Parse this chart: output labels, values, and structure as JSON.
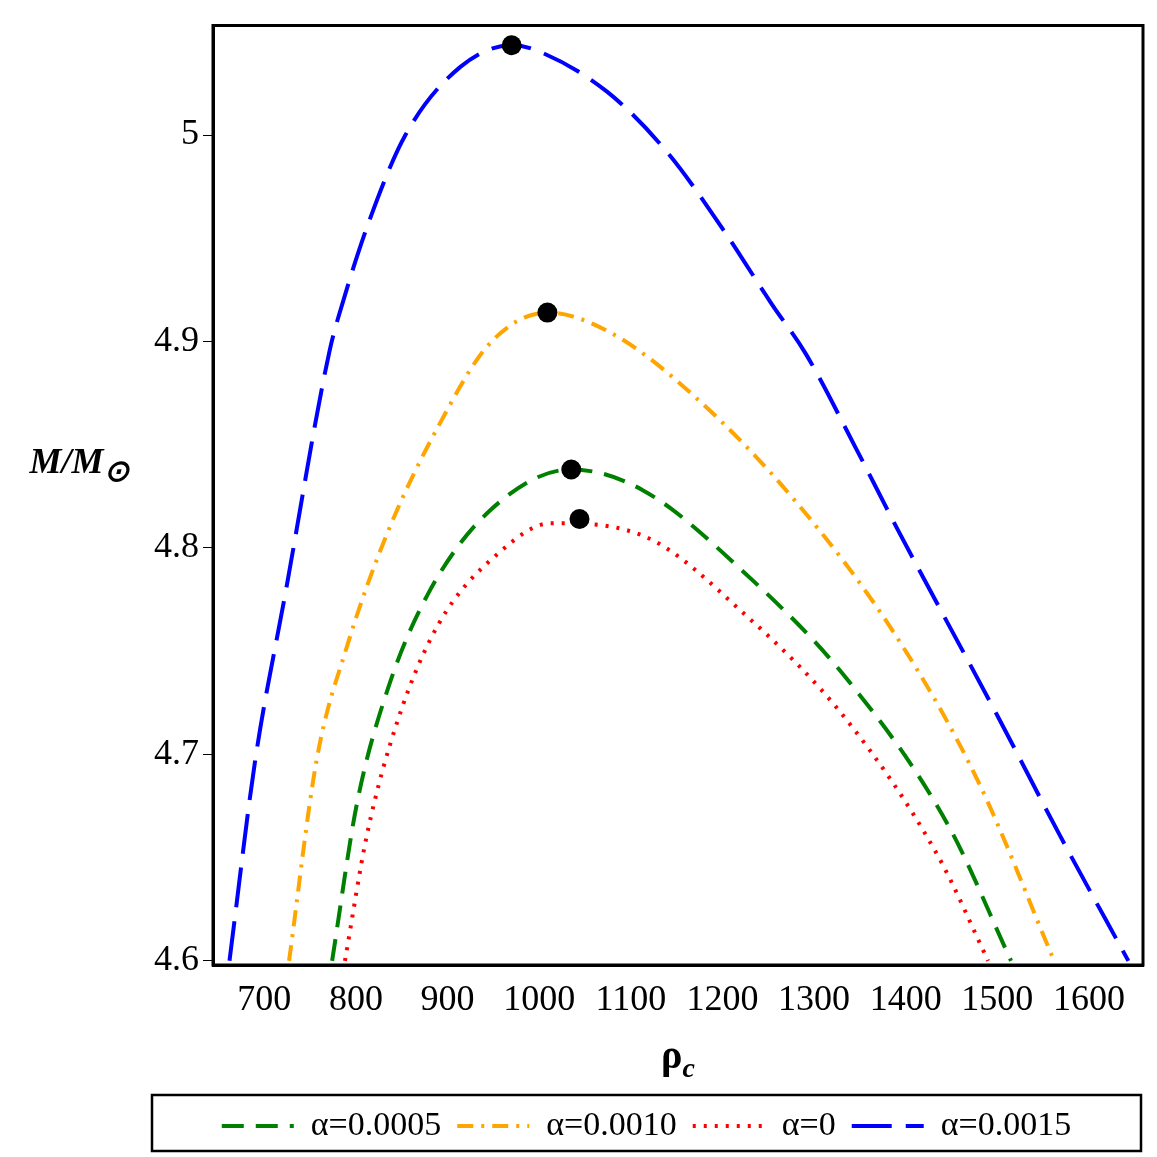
{
  "chart_data": {
    "type": "line",
    "xlabel": "ρ$_{c}$",
    "ylabel": "M/M$_{⊙}$",
    "xlim": [
      644,
      1659
    ],
    "ylim": [
      4.598,
      5.053
    ],
    "xticks": [
      700,
      800,
      900,
      1000,
      1100,
      1200,
      1300,
      1400,
      1500,
      1600
    ],
    "yticks": [
      {
        "value": 4.6,
        "label": "4.6"
      },
      {
        "value": 4.7,
        "label": "4.7"
      },
      {
        "value": 4.8,
        "label": "4.8"
      },
      {
        "value": 4.9,
        "label": "4.9"
      },
      {
        "value": 5.0,
        "label": "5"
      }
    ],
    "grid": false,
    "legend": "bottom",
    "marker": "none",
    "series": [
      {
        "name": "α=0.0005",
        "color": "#008000",
        "line_style": "dashed",
        "x": [
          774,
          801,
          835,
          879,
          946,
          1035,
          1113,
          1224,
          1335,
          1446,
          1515
        ],
        "values": [
          4.6,
          4.676,
          4.732,
          4.778,
          4.818,
          4.838,
          4.828,
          4.788,
          4.737,
          4.666,
          4.6
        ]
      },
      {
        "name": "α=0.0010",
        "color": "#ffa500",
        "line_style": "dashdot",
        "x": [
          727,
          757,
          790,
          835,
          890,
          946,
          1009,
          1079,
          1168,
          1279,
          1390,
          1479,
          1562
        ],
        "values": [
          4.6,
          4.697,
          4.752,
          4.808,
          4.859,
          4.899,
          4.914,
          4.904,
          4.874,
          4.823,
          4.757,
          4.687,
          4.6
        ]
      },
      {
        "name": "α=0",
        "color": "#ff0000",
        "line_style": "dotted",
        "x": [
          788,
          812,
          846,
          890,
          957,
          1013,
          1113,
          1224,
          1335,
          1435,
          1490
        ],
        "values": [
          4.6,
          4.661,
          4.717,
          4.763,
          4.798,
          4.812,
          4.806,
          4.768,
          4.717,
          4.651,
          4.6
        ]
      },
      {
        "name": "α=0.0015",
        "color": "#0000ff",
        "line_style": "longdash",
        "x": [
          662,
          690,
          723,
          771,
          785,
          815,
          854,
          914,
          970,
          994,
          1074,
          1141,
          1201,
          1254,
          1291,
          1346,
          1390,
          1501,
          1568,
          1643
        ],
        "values": [
          4.6,
          4.697,
          4.778,
          4.895,
          4.918,
          4.959,
          5.0,
          5.033,
          5.0435,
          5.0415,
          5.021,
          4.991,
          4.954,
          4.918,
          4.894,
          4.848,
          4.81,
          4.718,
          4.661,
          4.6
        ]
      },
      {
        "type": "scatter",
        "color": "#000000",
        "marker": "circle",
        "x": [
          970,
          1009,
          1035,
          1044
        ],
        "values": [
          5.0435,
          4.914,
          4.838,
          4.814
        ]
      }
    ]
  }
}
